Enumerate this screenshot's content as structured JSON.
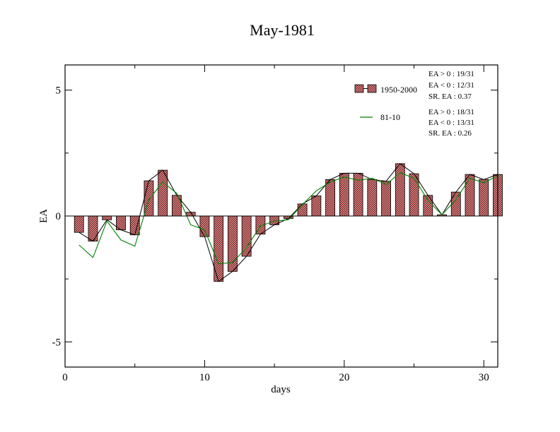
{
  "chart_data": {
    "type": "bar",
    "title": "May-1981",
    "xlabel": "days",
    "ylabel": "EA",
    "xlim": [
      0,
      31
    ],
    "ylim": [
      -6,
      6
    ],
    "x_ticks": [
      0,
      10,
      20,
      30
    ],
    "y_ticks": [
      -5,
      0,
      5
    ],
    "x_tick_labels": [
      "0",
      "10",
      "20",
      "30"
    ],
    "y_tick_labels": [
      "-5",
      "0",
      "5"
    ],
    "days": [
      1,
      2,
      3,
      4,
      5,
      6,
      7,
      8,
      9,
      10,
      11,
      12,
      13,
      14,
      15,
      16,
      17,
      18,
      19,
      20,
      21,
      22,
      23,
      24,
      25,
      26,
      27,
      28,
      29,
      30,
      31
    ],
    "series": [
      {
        "name": "1950-2000",
        "kind": "bar",
        "color": "#f08080",
        "values": [
          -0.65,
          -1.0,
          -0.15,
          -0.55,
          -0.75,
          1.4,
          1.82,
          0.82,
          0.15,
          -0.82,
          -2.6,
          -2.2,
          -1.6,
          -0.72,
          -0.35,
          -0.1,
          0.48,
          0.8,
          1.45,
          1.7,
          1.7,
          1.45,
          1.38,
          2.08,
          1.68,
          0.82,
          0.05,
          0.95,
          1.65,
          1.45,
          1.65
        ]
      },
      {
        "name": "81-10",
        "kind": "line",
        "color": "#008000",
        "values": [
          -1.15,
          -1.65,
          -0.2,
          -0.95,
          -1.2,
          0.65,
          1.35,
          0.9,
          -0.35,
          -0.55,
          -1.9,
          -1.85,
          -1.25,
          -0.4,
          -0.2,
          -0.15,
          0.45,
          1.0,
          1.35,
          1.55,
          1.42,
          1.5,
          1.25,
          1.72,
          1.5,
          0.62,
          0.05,
          0.65,
          1.5,
          1.32,
          1.6
        ]
      }
    ],
    "legend": {
      "position": "top-right",
      "entries": [
        {
          "label": "1950-2000",
          "stats": [
            "EA > 0 : 19/31",
            "EA < 0 : 12/31",
            "SR. EA :  0.37"
          ]
        },
        {
          "label": "81-10",
          "stats": [
            "EA > 0 : 18/31",
            "EA < 0 : 13/31",
            "SR. EA :  0.26"
          ]
        }
      ]
    }
  }
}
